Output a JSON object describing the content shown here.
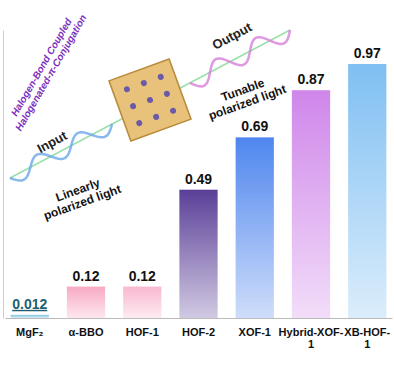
{
  "chart_data": {
    "type": "bar",
    "categories": [
      "MgF₂",
      "α-BBO",
      "HOF-1",
      "HOF-2",
      "XOF-1",
      "Hybrid-XOF-1",
      "XB-HOF-1"
    ],
    "values": [
      0.012,
      0.12,
      0.12,
      0.49,
      0.69,
      0.87,
      0.97
    ],
    "colors": [
      "#7fc4e0",
      "#f7a9c4",
      "#f9b8cf",
      "#5a3f98",
      "#4f86ee",
      "#cf86ea",
      "#7fbff2"
    ],
    "ylim": [
      0,
      1.1
    ],
    "yticks": [],
    "data_labels": true,
    "tick_labels": "x",
    "grid": false,
    "annotations": [
      "Halogen-Bond Coupled Halogenated-π-Conjugation",
      "Input",
      "Output",
      "Linearly polarized light",
      "Tunable polarized light"
    ]
  }
}
